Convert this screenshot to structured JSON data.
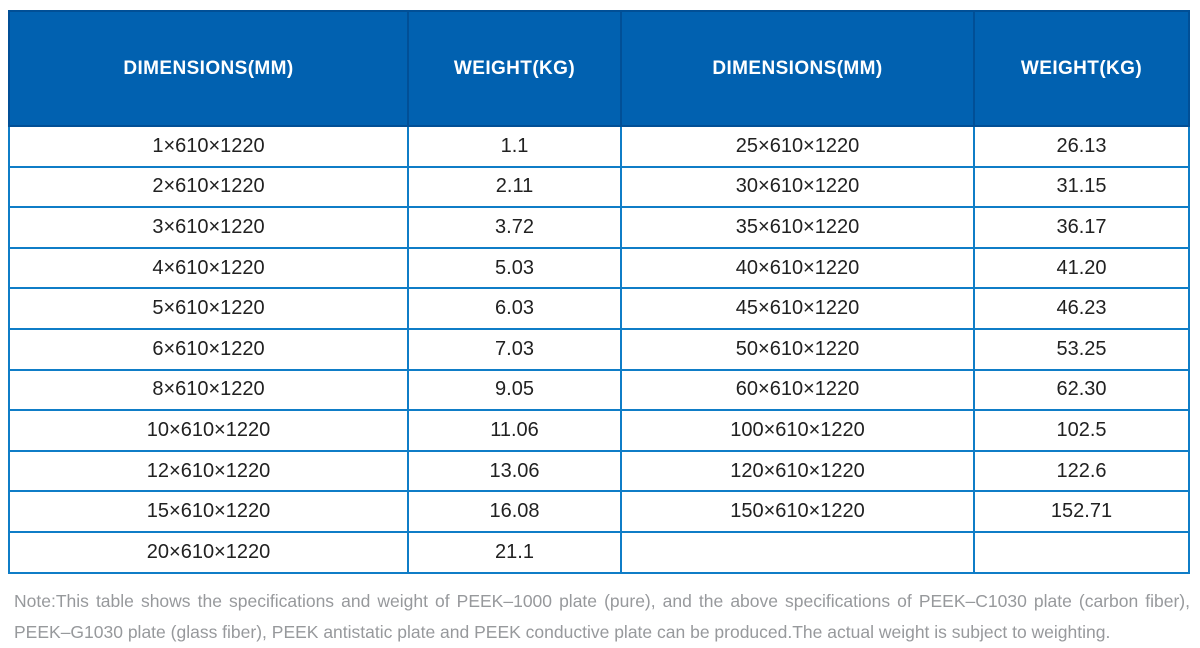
{
  "colors": {
    "header_bg": "#0161b0",
    "header_border": "#014f96",
    "grid_line": "#0f7dc7",
    "header_text": "#ffffff",
    "cell_text": "#212121",
    "note_text": "#97999c"
  },
  "table": {
    "headers": [
      "DIMENSIONS(MM)",
      "WEIGHT(KG)",
      "DIMENSIONS(MM)",
      "WEIGHT(KG)"
    ],
    "rows": [
      [
        "1×610×1220",
        "1.1",
        "25×610×1220",
        "26.13"
      ],
      [
        "2×610×1220",
        "2.11",
        "30×610×1220",
        "31.15"
      ],
      [
        "3×610×1220",
        "3.72",
        "35×610×1220",
        "36.17"
      ],
      [
        "4×610×1220",
        "5.03",
        "40×610×1220",
        "41.20"
      ],
      [
        "5×610×1220",
        "6.03",
        "45×610×1220",
        "46.23"
      ],
      [
        "6×610×1220",
        "7.03",
        "50×610×1220",
        "53.25"
      ],
      [
        "8×610×1220",
        "9.05",
        "60×610×1220",
        "62.30"
      ],
      [
        "10×610×1220",
        "11.06",
        "100×610×1220",
        "102.5"
      ],
      [
        "12×610×1220",
        "13.06",
        "120×610×1220",
        "122.6"
      ],
      [
        "15×610×1220",
        "16.08",
        "150×610×1220",
        "152.71"
      ],
      [
        "20×610×1220",
        "21.1",
        "",
        ""
      ]
    ]
  },
  "note": {
    "line1": "Note:This table shows the specifications and weight of PEEK–1000 plate (pure), and the above specifications of PEEK–C1030 plate (carbon fiber),",
    "line2": "PEEK–G1030 plate (glass fiber), PEEK antistatic plate and PEEK conductive plate can be produced.The actual weight is subject to weighting."
  }
}
